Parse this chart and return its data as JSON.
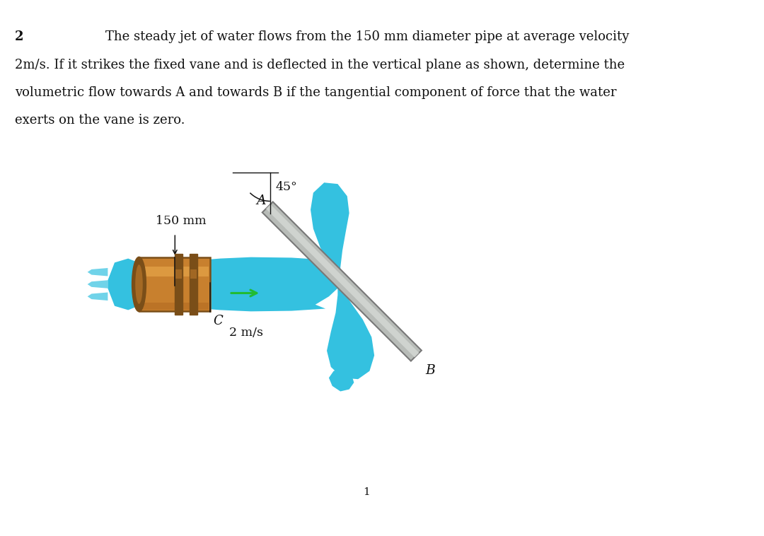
{
  "title_num": "2",
  "line1": "The steady jet of water flows from the 150 mm diameter pipe at average velocity",
  "line2": "2m/s. If it strikes the fixed vane and is deflected in the vertical plane as shown, determine the",
  "line3": "volumetric flow towards A and towards B if the tangential component of force that the water",
  "line4": "exerts on the vane is zero.",
  "page_num": "1",
  "label_150mm": "150 mm",
  "label_C": "C",
  "label_2ms": "2 m/s",
  "label_A": "A",
  "label_B": "B",
  "label_45": "45°",
  "bg_color": "#ffffff",
  "water_color": "#34c1e0",
  "water_color_dark": "#1ea8c8",
  "pipe_body": "#c8802e",
  "pipe_dark": "#7a4e18",
  "pipe_light": "#e8a84a",
  "pipe_mid": "#b06820",
  "vane_face": "#b8bcb8",
  "vane_light": "#d4d8d4",
  "vane_edge": "#787878",
  "arrow_color": "#22bb33",
  "text_color": "#111111",
  "fs_body": 13.0,
  "fs_label": 12.5
}
